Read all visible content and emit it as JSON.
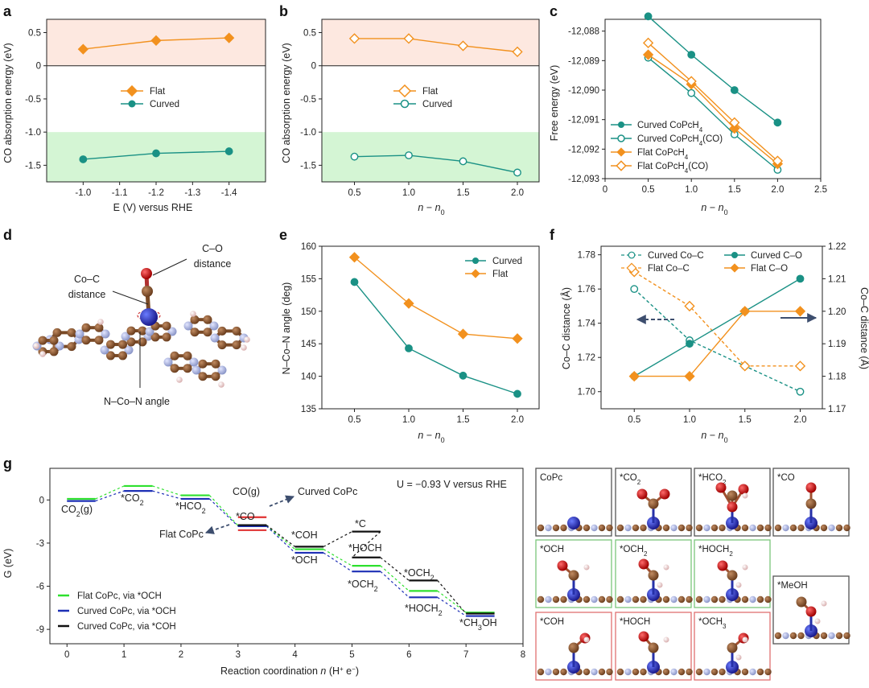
{
  "figure_title": "",
  "colors": {
    "flat": "#f2911e",
    "curved": "#1a9185",
    "pink": "#fde8e0",
    "green": "#d4f5d4",
    "green_line": "#2ee02e",
    "blue_line": "#1d2fb5",
    "black_line": "#111111",
    "red_line": "#e03030",
    "arrow": "#3d4e6e"
  },
  "chart_data": [
    {
      "panel": "a",
      "type": "line",
      "xlabel": "E (V) versus RHE",
      "ylabel": "CO absorption energy (eV)",
      "x": [
        -1.0,
        -1.2,
        -1.4
      ],
      "xlim": [
        -0.9,
        -1.5
      ],
      "ylim": [
        -1.75,
        0.7
      ],
      "xticks": [
        "-1.0",
        "-1.1",
        "-1.2",
        "-1.3",
        "-1.4"
      ],
      "yticks": [
        "0.5",
        "0",
        "-0.5",
        "-1.0",
        "-1.5"
      ],
      "series": [
        {
          "name": "Flat",
          "values": [
            0.25,
            0.38,
            0.42
          ]
        },
        {
          "name": "Curved",
          "values": [
            -1.41,
            -1.32,
            -1.29
          ]
        }
      ]
    },
    {
      "panel": "b",
      "type": "line",
      "xlabel": "n − n0",
      "ylabel": "CO absorption energy (eV)",
      "x": [
        0.5,
        1.0,
        1.5,
        2.0
      ],
      "xlim": [
        0.2,
        2.2
      ],
      "ylim": [
        -1.75,
        0.7
      ],
      "xticks": [
        "0.5",
        "1.0",
        "1.5",
        "2.0"
      ],
      "yticks": [
        "0.5",
        "0",
        "-0.5",
        "-1.0",
        "-1.5"
      ],
      "series": [
        {
          "name": "Flat",
          "values": [
            0.41,
            0.41,
            0.3,
            0.21
          ]
        },
        {
          "name": "Curved",
          "values": [
            -1.37,
            -1.35,
            -1.44,
            -1.61
          ]
        }
      ]
    },
    {
      "panel": "c",
      "type": "line",
      "xlabel": "n − n0",
      "ylabel": "Free energy (eV)",
      "x": [
        0.5,
        1.0,
        1.5,
        2.0
      ],
      "xlim": [
        0,
        2.5
      ],
      "ylim": [
        -12093,
        -12087.6
      ],
      "xticks": [
        "0",
        "0.5",
        "1.0",
        "1.5",
        "2.0",
        "2.5"
      ],
      "yticks": [
        "-12,088",
        "-12,089",
        "-12,090",
        "-12,091",
        "-12,092",
        "-12,093"
      ],
      "series": [
        {
          "name": "Curved CoPcH4",
          "values": [
            -12087.5,
            -12088.8,
            -12090.0,
            -12091.1
          ]
        },
        {
          "name": "Curved CoPcH4(CO)",
          "values": [
            -12088.9,
            -12090.1,
            -12091.5,
            -12092.7
          ]
        },
        {
          "name": "Flat CoPcH4",
          "values": [
            -12088.8,
            -12089.8,
            -12091.3,
            -12092.5
          ]
        },
        {
          "name": "Flat CoPcH4(CO)",
          "values": [
            -12088.4,
            -12089.7,
            -12091.1,
            -12092.4
          ]
        }
      ]
    },
    {
      "panel": "e",
      "type": "line",
      "xlabel": "n − n0",
      "ylabel": "N–Co–N angle (deg)",
      "x": [
        0.5,
        1.0,
        1.5,
        2.0
      ],
      "xlim": [
        0.2,
        2.2
      ],
      "ylim": [
        135,
        160
      ],
      "xticks": [
        "0.5",
        "1.0",
        "1.5",
        "2.0"
      ],
      "yticks": [
        "135",
        "140",
        "145",
        "150",
        "155",
        "160"
      ],
      "series": [
        {
          "name": "Curved",
          "values": [
            154.5,
            144.3,
            140.1,
            137.3
          ]
        },
        {
          "name": "Flat",
          "values": [
            158.3,
            151.2,
            146.5,
            145.8
          ]
        }
      ]
    },
    {
      "panel": "f",
      "type": "line",
      "xlabel": "n − n0",
      "ylabel": "Co–C distance (Å)",
      "ylabel_right": "Co–C distance (Å)",
      "x": [
        0.5,
        1.0,
        1.5,
        2.0
      ],
      "xlim": [
        0.2,
        2.2
      ],
      "ylim": [
        1.69,
        1.785
      ],
      "ylim_right": [
        1.17,
        1.22
      ],
      "xticks": [
        "0.5",
        "1.0",
        "1.5",
        "2.0"
      ],
      "yticks": [
        "1.70",
        "1.72",
        "1.74",
        "1.76",
        "1.78"
      ],
      "yticks_right": [
        "1.17",
        "1.18",
        "1.19",
        "1.20",
        "1.21",
        "1.22"
      ],
      "series": [
        {
          "name": "Curved Co–C",
          "axis": "left",
          "values": [
            1.76,
            1.73,
            1.715,
            1.7
          ]
        },
        {
          "name": "Flat Co–C",
          "axis": "left",
          "values": [
            1.77,
            1.75,
            1.715,
            1.715
          ]
        },
        {
          "name": "Curved C–O",
          "axis": "right",
          "values": [
            1.18,
            1.19,
            1.2,
            1.21
          ]
        },
        {
          "name": "Flat C–O",
          "axis": "right",
          "values": [
            1.18,
            1.18,
            1.2,
            1.2
          ]
        }
      ]
    },
    {
      "panel": "g",
      "type": "line",
      "xlabel": "Reaction coordination n (H+ + e−)",
      "ylabel": "G (eV)",
      "xlim": [
        -0.3,
        8
      ],
      "ylim": [
        -10,
        2.2
      ],
      "xticks": [
        "0",
        "1",
        "2",
        "3",
        "4",
        "5",
        "6",
        "7",
        "8"
      ],
      "yticks": [
        "0",
        "-3",
        "-6",
        "-9"
      ],
      "annotation": "U = −0.93 V versus RHE",
      "series": [
        {
          "name": "Flat CoPc, via *OCH",
          "levels": [
            [
              0,
              0
            ],
            [
              1,
              0.9
            ],
            [
              2,
              0.25
            ],
            [
              3,
              -1.85
            ],
            [
              4,
              -3.5
            ],
            [
              5,
              -4.65
            ],
            [
              6,
              -6.4
            ],
            [
              7,
              -7.9
            ]
          ]
        },
        {
          "name": "Curved CoPc, via *OCH",
          "levels": [
            [
              0,
              0
            ],
            [
              1,
              0.7
            ],
            [
              2,
              0.15
            ],
            [
              3,
              -1.75
            ],
            [
              4,
              -3.6
            ],
            [
              5,
              -4.9
            ],
            [
              6,
              -6.7
            ],
            [
              7,
              -8.0
            ]
          ]
        },
        {
          "name": "Curved CoPc, via *COH",
          "levels": [
            [
              3,
              -1.75
            ],
            [
              4,
              -3.25
            ],
            [
              5,
              -2.2
            ],
            [
              5,
              -4.0
            ],
            [
              6,
              -5.6
            ],
            [
              7,
              -7.9
            ]
          ]
        }
      ]
    }
  ],
  "panel_labels": [
    "a",
    "b",
    "c",
    "d",
    "e",
    "f",
    "g"
  ],
  "legends": {
    "a": [
      "Flat",
      "Curved"
    ],
    "b": [
      "Flat",
      "Curved"
    ],
    "c": [
      "Curved CoPcH",
      "Curved CoPcH",
      "Flat CoPcH",
      "Flat CoPcH"
    ],
    "c_sub": [
      "4",
      "4",
      "4",
      "4"
    ],
    "c_suffix": [
      "",
      "(CO)",
      "",
      "(CO)"
    ],
    "e": [
      "Curved",
      "Flat"
    ],
    "f": [
      "Curved Co–C",
      "Flat Co–C",
      "Curved C–O",
      "Flat C–O"
    ],
    "g": [
      "Flat CoPc, via *OCH",
      "Curved CoPc, via *OCH",
      "Curved CoPc, via *COH"
    ]
  },
  "panel_d": {
    "c_o": "C–O",
    "distance1": "distance",
    "co_c": "Co–C",
    "distance2": "distance",
    "angle": "N–Co–N angle"
  },
  "panel_g_text": {
    "u": "U = −0.93 V versus RHE",
    "co2g": "CO",
    "co2g_sub": "2",
    "co2g_tail": "(g)",
    "co2": "*CO",
    "co2_sub": "2",
    "hco2": "*HCO",
    "hco2_sub": "2",
    "cog": "CO(g)",
    "curved_copc": "Curved CoPc",
    "flat_copc": "Flat CoPc",
    "co": "*CO",
    "coh": "*COH",
    "och": "*OCH",
    "c": "*C",
    "hoch": "*HOCH",
    "och2a": "*OCH",
    "och2b": "*OCH",
    "hoch2": "*HOCH",
    "ch3oh": "*CH",
    "ch3oh_sub": "3",
    "ch3oh_tail": "OH",
    "sub2": "2",
    "xlabel_main": "Reaction coordination ",
    "xlabel_n": "n",
    "xlabel_tail": " (H",
    "xlabel_tail2": " e",
    "xlabel_end": ")"
  },
  "structures": [
    {
      "label": "CoPc",
      "sub": "",
      "border": "#555555"
    },
    {
      "label": "*CO",
      "sub": "2",
      "border": "#555555"
    },
    {
      "label": "*HCO",
      "sub": "2",
      "border": "#555555"
    },
    {
      "label": "*CO",
      "sub": "",
      "border": "#555555"
    },
    {
      "label": "*OCH",
      "sub": "",
      "border": "#7bc77b"
    },
    {
      "label": "*OCH",
      "sub": "2",
      "border": "#7bc77b"
    },
    {
      "label": "*HOCH",
      "sub": "2",
      "border": "#7bc77b"
    },
    {
      "label": "*MeOH",
      "sub": "",
      "border": "#555555"
    },
    {
      "label": "*COH",
      "sub": "",
      "border": "#e07070"
    },
    {
      "label": "*HOCH",
      "sub": "",
      "border": "#e07070"
    },
    {
      "label": "*OCH",
      "sub": "3",
      "border": "#e07070"
    }
  ]
}
